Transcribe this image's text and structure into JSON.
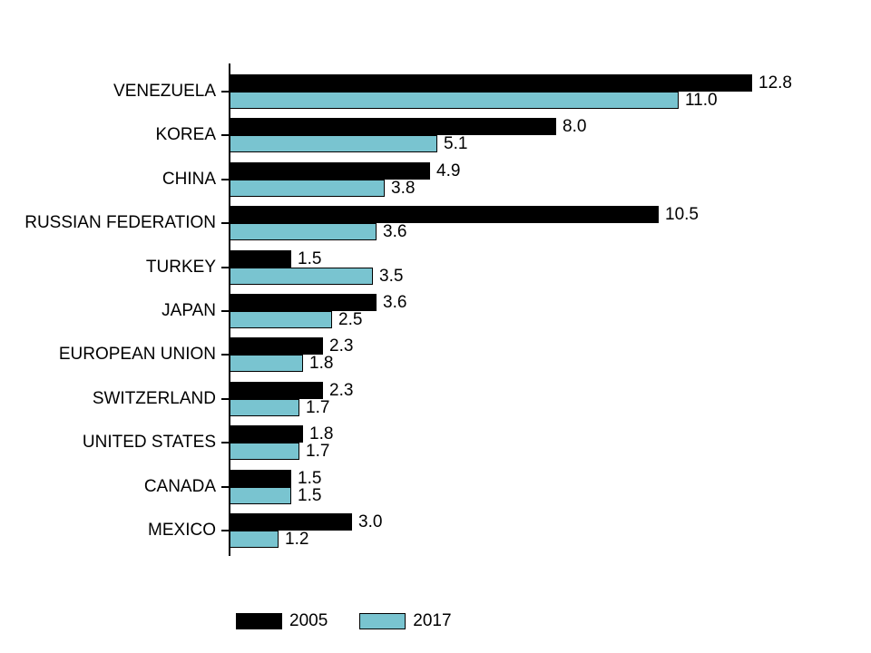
{
  "chart_data": {
    "type": "bar",
    "orientation": "horizontal",
    "title": "",
    "xlabel": "",
    "ylabel": "",
    "grid": false,
    "legend_position": "bottom",
    "xlim": [
      0,
      14.4
    ],
    "value_label_decimals": 1,
    "categories": [
      "VENEZUELA",
      "KOREA",
      "CHINA",
      "RUSSIAN FEDERATION",
      "TURKEY",
      "JAPAN",
      "EUROPEAN UNION",
      "SWITZERLAND",
      "UNITED STATES",
      "CANADA",
      "MEXICO"
    ],
    "series": [
      {
        "name": "2005",
        "color": "#000000",
        "values": [
          12.8,
          8.0,
          4.9,
          10.5,
          1.5,
          3.6,
          2.3,
          2.3,
          1.8,
          1.5,
          3.0
        ]
      },
      {
        "name": "2017",
        "color": "#79C4D0",
        "values": [
          11.0,
          5.1,
          3.8,
          3.6,
          3.5,
          2.5,
          1.8,
          1.7,
          1.7,
          1.5,
          1.2
        ]
      }
    ]
  },
  "colors": {
    "background": "#FFFFFF",
    "axis": "#000000",
    "text": "#000000",
    "bar_2005": "#000000",
    "bar_2017": "#79C4D0",
    "bar_border": "#000000"
  }
}
